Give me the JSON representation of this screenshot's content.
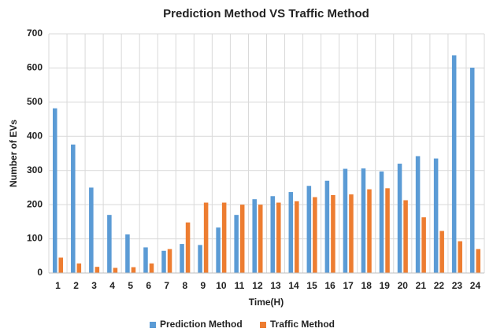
{
  "chart_data": {
    "type": "bar",
    "title": "Prediction Method VS Traffic Method",
    "x_label": "Time(H)",
    "y_label": "Number of EVs",
    "categories": [
      "1",
      "2",
      "3",
      "4",
      "5",
      "6",
      "7",
      "8",
      "9",
      "10",
      "11",
      "12",
      "13",
      "14",
      "15",
      "16",
      "17",
      "18",
      "19",
      "20",
      "21",
      "22",
      "23",
      "24"
    ],
    "series": [
      {
        "name": "Prediction Method",
        "color": "#5b9bd5",
        "values": [
          482,
          376,
          250,
          170,
          113,
          75,
          65,
          85,
          82,
          133,
          170,
          216,
          225,
          237,
          255,
          270,
          305,
          306,
          297,
          320,
          342,
          335,
          637,
          601
        ]
      },
      {
        "name": "Traffic Method",
        "color": "#ed7d31",
        "values": [
          45,
          28,
          18,
          15,
          17,
          28,
          70,
          148,
          206,
          206,
          200,
          200,
          206,
          210,
          222,
          228,
          230,
          245,
          248,
          213,
          163,
          123,
          93,
          70
        ]
      }
    ],
    "ylim": [
      0,
      700
    ],
    "yticks": [
      0,
      100,
      200,
      300,
      400,
      500,
      600,
      700
    ],
    "grid": true,
    "legend": "bottom"
  }
}
